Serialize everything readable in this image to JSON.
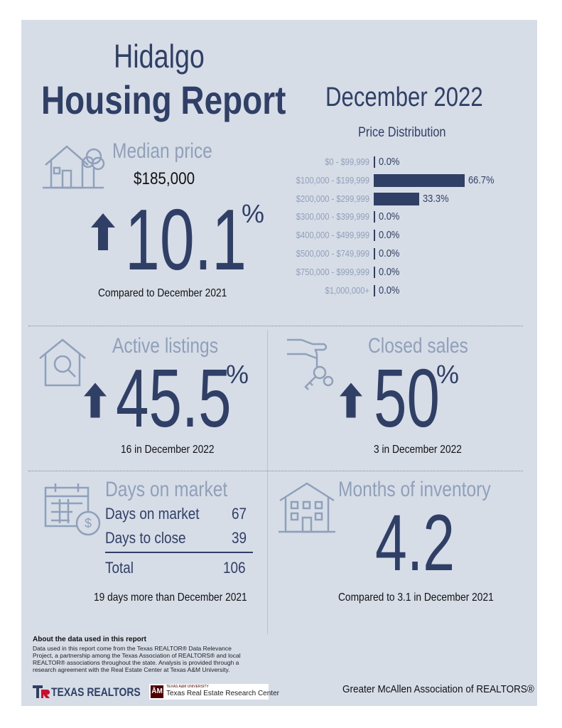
{
  "header": {
    "title_line1": "Hidalgo",
    "title_line2": "Housing Report",
    "period": "December 2022"
  },
  "median_price": {
    "heading": "Median price",
    "price": "$185,000",
    "change": "10.1",
    "unit": "%",
    "direction": "up",
    "caption": "Compared to December 2021",
    "icon": "house-tree-icon"
  },
  "price_distribution": {
    "title": "Price Distribution",
    "rows": [
      {
        "range": "$0 - $99,999",
        "value": "0.0%",
        "pct": 0
      },
      {
        "range": "$100,000 - $199,999",
        "value": "66.7%",
        "pct": 66.7
      },
      {
        "range": "$200,000 - $299,999",
        "value": "33.3%",
        "pct": 33.3
      },
      {
        "range": "$300,000 - $399,999",
        "value": "0.0%",
        "pct": 0
      },
      {
        "range": "$400,000 - $499,999",
        "value": "0.0%",
        "pct": 0
      },
      {
        "range": "$500,000 - $749,999",
        "value": "0.0%",
        "pct": 0
      },
      {
        "range": "$750,000 - $999,999",
        "value": "0.0%",
        "pct": 0
      },
      {
        "range": "$1,000,000+",
        "value": "0.0%",
        "pct": 0
      }
    ]
  },
  "active_listings": {
    "heading": "Active listings",
    "change": "45.5",
    "unit": "%",
    "direction": "up",
    "caption": "16 in December 2022",
    "icon": "house-search-icon"
  },
  "closed_sales": {
    "heading": "Closed sales",
    "change": "50",
    "unit": "%",
    "direction": "up",
    "caption": "3 in December 2022",
    "icon": "hand-keys-icon"
  },
  "days_on_market": {
    "heading": "Days on market",
    "rows": [
      {
        "label": "Days on market",
        "value": "67"
      },
      {
        "label": "Days to close",
        "value": "39"
      }
    ],
    "total_label": "Total",
    "total_value": "106",
    "caption": "19 days more than December 2021",
    "icon": "calendar-dollar-icon"
  },
  "months_inventory": {
    "heading": "Months of inventory",
    "value": "4.2",
    "caption": "Compared to 3.1 in December 2021",
    "icon": "building-icon"
  },
  "about": {
    "heading": "About the data used in this report",
    "text": "Data used in this report come from the Texas REALTOR® Data Relevance Project, a partnership among the Texas Association of REALTORS® and local REALTOR® associations throughout the state. Analysis is provided through a research agreement with the Real Estate Center at Texas A&M University."
  },
  "footer": {
    "logo1": "TEXAS REALTORS",
    "logo2_small": "TEXAS A&M UNIVERSITY",
    "logo2": "Texas Real Estate Research Center",
    "association": "Greater McAllen Association of REALTORS®"
  },
  "colors": {
    "navy": "#2f3f66",
    "light": "#8fa0bb",
    "panel": "#d7dde6",
    "red": "#c8102e",
    "maroon": "#500000"
  }
}
